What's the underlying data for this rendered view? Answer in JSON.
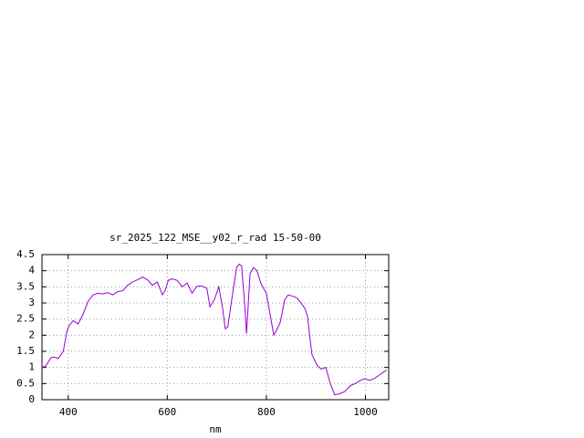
{
  "chart_data": {
    "type": "line",
    "title": "sr_2025_122_MSE__y02_r_rad 15-50-00",
    "x_label": "nm",
    "x": [
      347,
      355,
      365,
      372,
      380,
      390,
      397,
      402,
      410,
      420,
      430,
      440,
      450,
      460,
      470,
      480,
      490,
      500,
      510,
      520,
      530,
      540,
      550,
      560,
      570,
      580,
      590,
      596,
      602,
      610,
      620,
      630,
      640,
      650,
      660,
      670,
      680,
      686,
      695,
      704,
      712,
      717,
      722,
      732,
      740,
      745,
      750,
      756,
      760,
      767,
      774,
      781,
      789,
      800,
      808,
      815,
      822,
      828,
      837,
      844,
      855,
      862,
      870,
      877,
      883,
      888,
      892,
      903,
      911,
      920,
      929,
      938,
      947,
      958,
      971,
      980,
      990,
      999,
      1008,
      1017,
      1027,
      1036,
      1043
    ],
    "series": [
      {
        "name": "sr_2025_122_MSE__y02_r_rad 15-50-00",
        "color": "#9400d3",
        "values": [
          1.0,
          1.05,
          1.3,
          1.32,
          1.28,
          1.5,
          2.1,
          2.3,
          2.45,
          2.35,
          2.65,
          3.05,
          3.25,
          3.3,
          3.28,
          3.32,
          3.25,
          3.35,
          3.38,
          3.55,
          3.65,
          3.72,
          3.8,
          3.72,
          3.55,
          3.65,
          3.25,
          3.4,
          3.7,
          3.75,
          3.7,
          3.5,
          3.62,
          3.3,
          3.52,
          3.52,
          3.45,
          2.88,
          3.1,
          3.5,
          2.8,
          2.2,
          2.25,
          3.3,
          4.1,
          4.2,
          4.15,
          3.0,
          2.05,
          3.9,
          4.1,
          4.0,
          3.6,
          3.3,
          2.6,
          2.0,
          2.2,
          2.4,
          3.1,
          3.25,
          3.2,
          3.15,
          3.0,
          2.85,
          2.6,
          1.9,
          1.4,
          1.05,
          0.95,
          1.0,
          0.5,
          0.15,
          0.18,
          0.25,
          0.45,
          0.5,
          0.6,
          0.65,
          0.6,
          0.65,
          0.75,
          0.85,
          0.92
        ]
      }
    ],
    "xlim": [
      347,
      1047
    ],
    "ylim": [
      0,
      4.5
    ],
    "xticks": [
      400,
      600,
      800,
      1000
    ],
    "yticks": [
      0,
      0.5,
      1,
      1.5,
      2,
      2.5,
      3,
      3.5,
      4,
      4.5
    ],
    "grid": true
  }
}
